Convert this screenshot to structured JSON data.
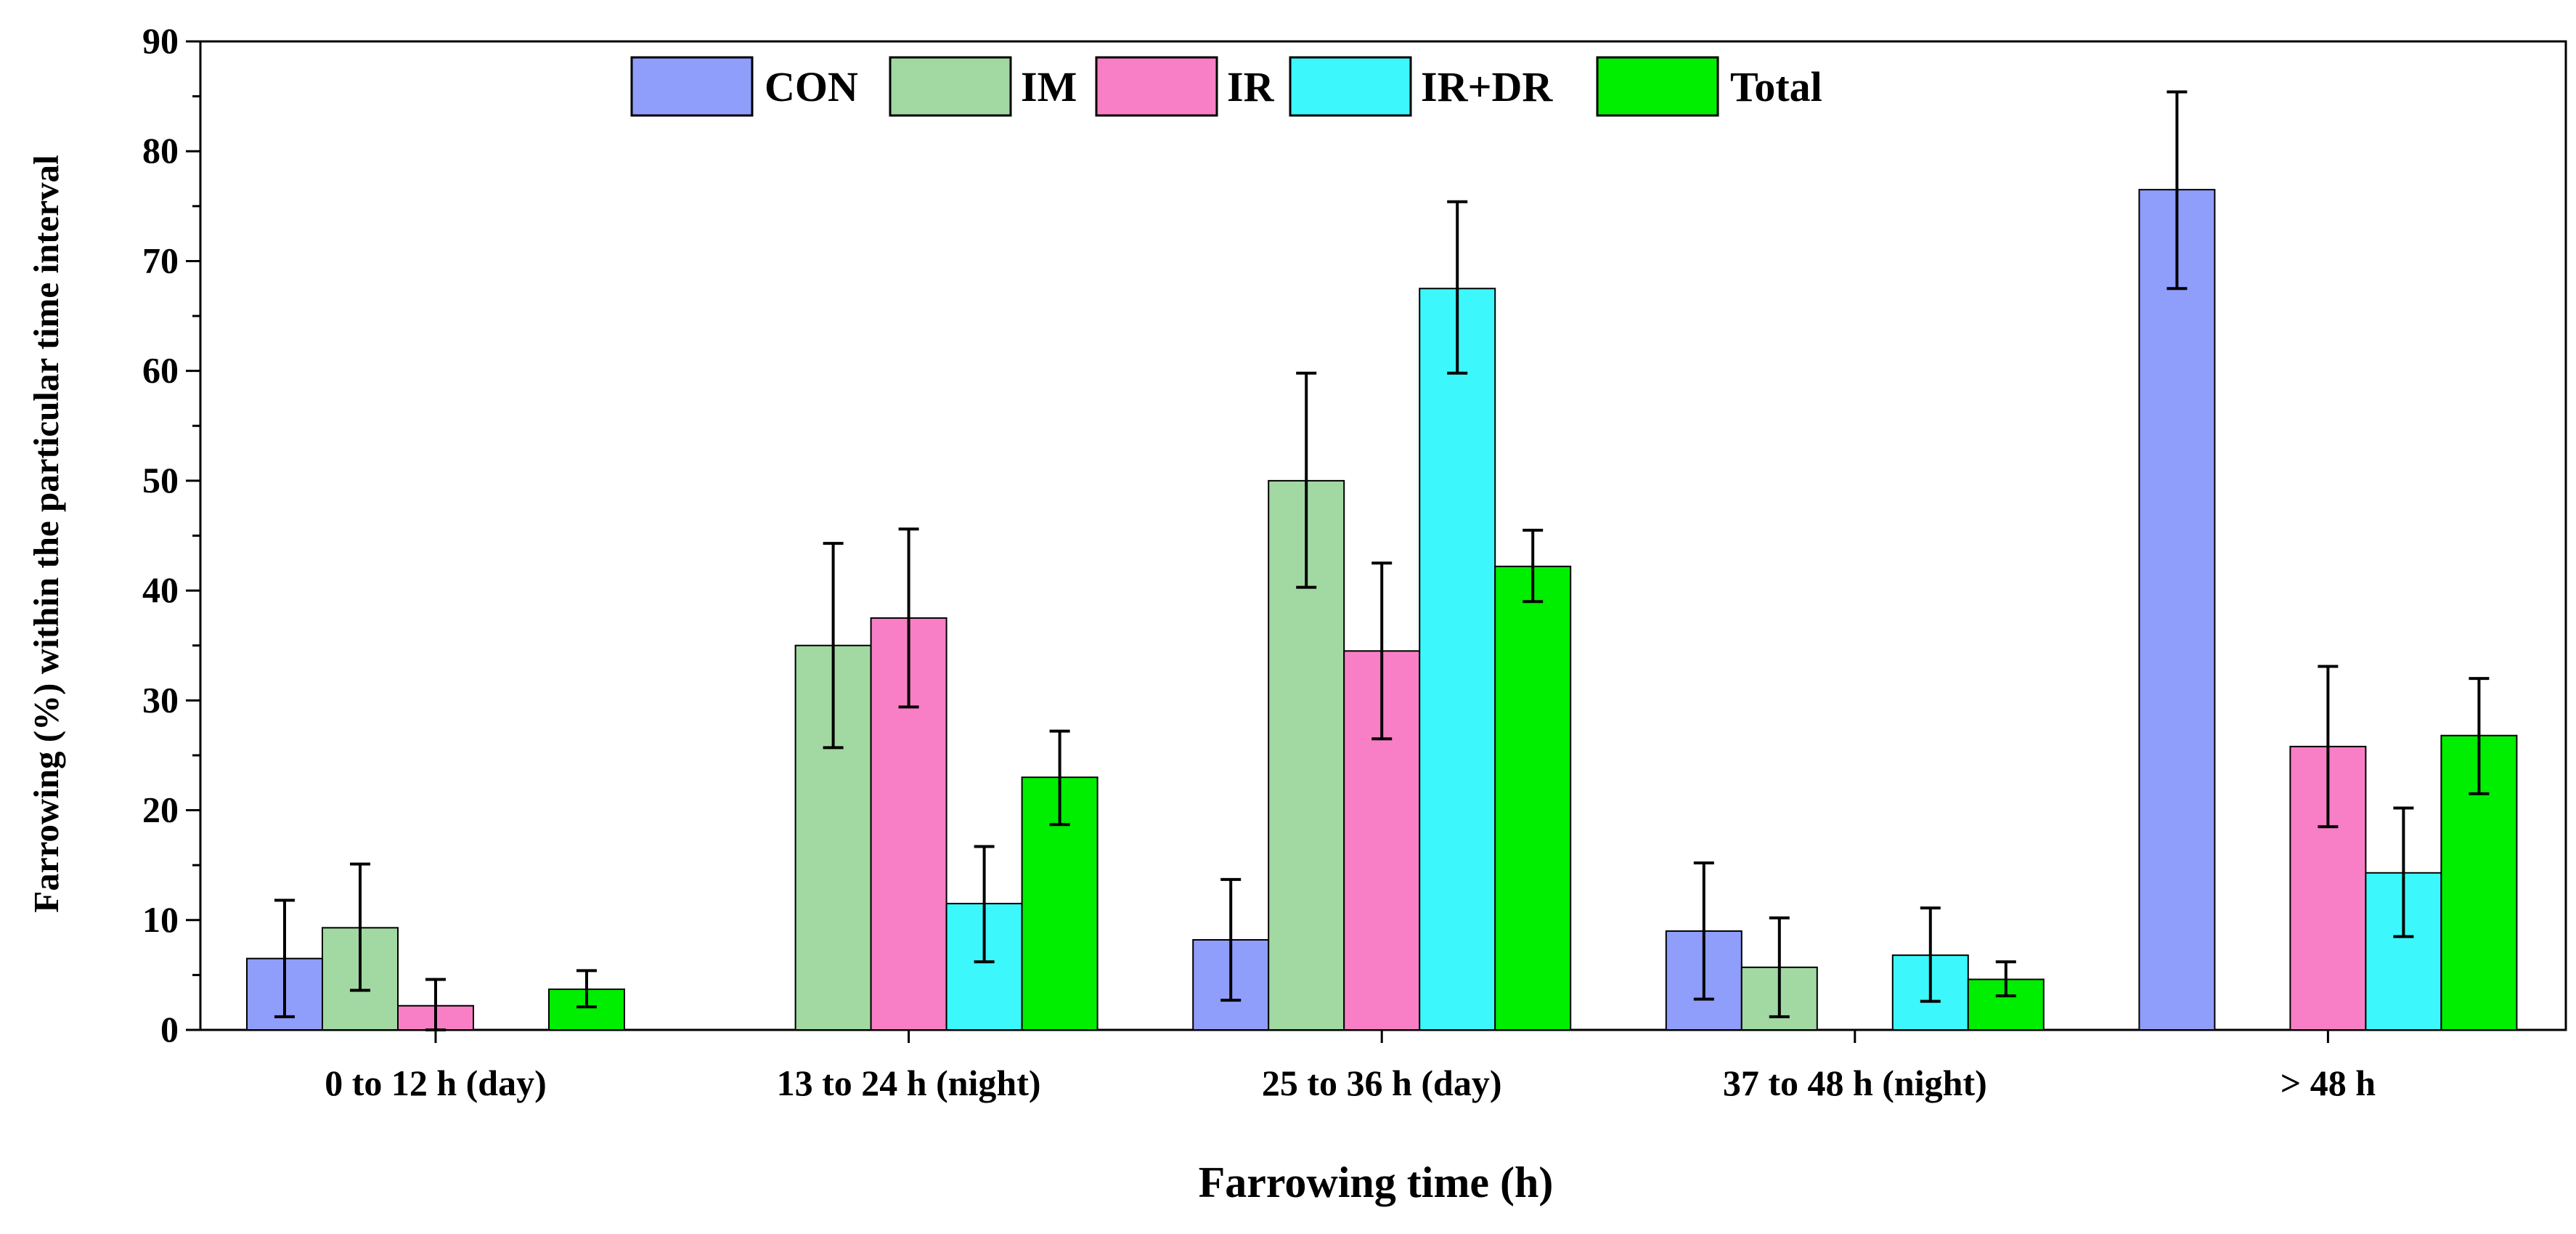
{
  "chart_data": {
    "type": "bar",
    "title": "",
    "xlabel": "Farrowing time (h)",
    "ylabel": "Farrowing (%) within the particular time interval",
    "ylim": [
      0,
      90
    ],
    "yticks": [
      0,
      10,
      20,
      30,
      40,
      50,
      60,
      70,
      80,
      90
    ],
    "categories": [
      "0 to 12 h (day)",
      "13 to 24 h (night)",
      "25 to 36 h (day)",
      "37 to 48 h (night)",
      "> 48 h"
    ],
    "series": [
      {
        "name": "CON",
        "color": "#8f9dfb",
        "values": [
          6.5,
          0,
          8.2,
          9.0,
          76.5
        ],
        "error_low": [
          1.2,
          null,
          2.7,
          2.8,
          67.5
        ],
        "error_high": [
          11.8,
          null,
          13.7,
          15.2,
          85.4
        ]
      },
      {
        "name": "IM",
        "color": "#a2d9a2",
        "values": [
          9.3,
          35.0,
          50.0,
          5.7,
          0
        ],
        "error_low": [
          3.6,
          25.7,
          40.3,
          1.2,
          null
        ],
        "error_high": [
          15.1,
          44.3,
          59.8,
          10.2,
          null
        ]
      },
      {
        "name": "IR",
        "color": "#f87fc5",
        "values": [
          2.2,
          37.5,
          34.5,
          0,
          25.8
        ],
        "error_low": [
          0,
          29.4,
          26.5,
          null,
          18.5
        ],
        "error_high": [
          4.6,
          45.6,
          42.5,
          null,
          33.1
        ]
      },
      {
        "name": "IR+DR",
        "color": "#3cf7fb",
        "values": [
          0,
          11.5,
          67.5,
          6.8,
          14.3
        ],
        "error_low": [
          null,
          6.2,
          59.8,
          2.6,
          8.5
        ],
        "error_high": [
          null,
          16.7,
          75.4,
          11.1,
          20.2
        ]
      },
      {
        "name": "Total",
        "color": "#00ee00",
        "values": [
          3.7,
          23.0,
          42.2,
          4.6,
          26.8
        ],
        "error_low": [
          2.1,
          18.7,
          39.0,
          3.1,
          21.5
        ],
        "error_high": [
          5.4,
          27.2,
          45.5,
          6.2,
          32.0
        ]
      }
    ],
    "legend": {
      "position": "top-center",
      "entries": [
        "CON",
        "IM",
        "IR",
        "IR+DR",
        "Total"
      ]
    },
    "grid": false
  }
}
